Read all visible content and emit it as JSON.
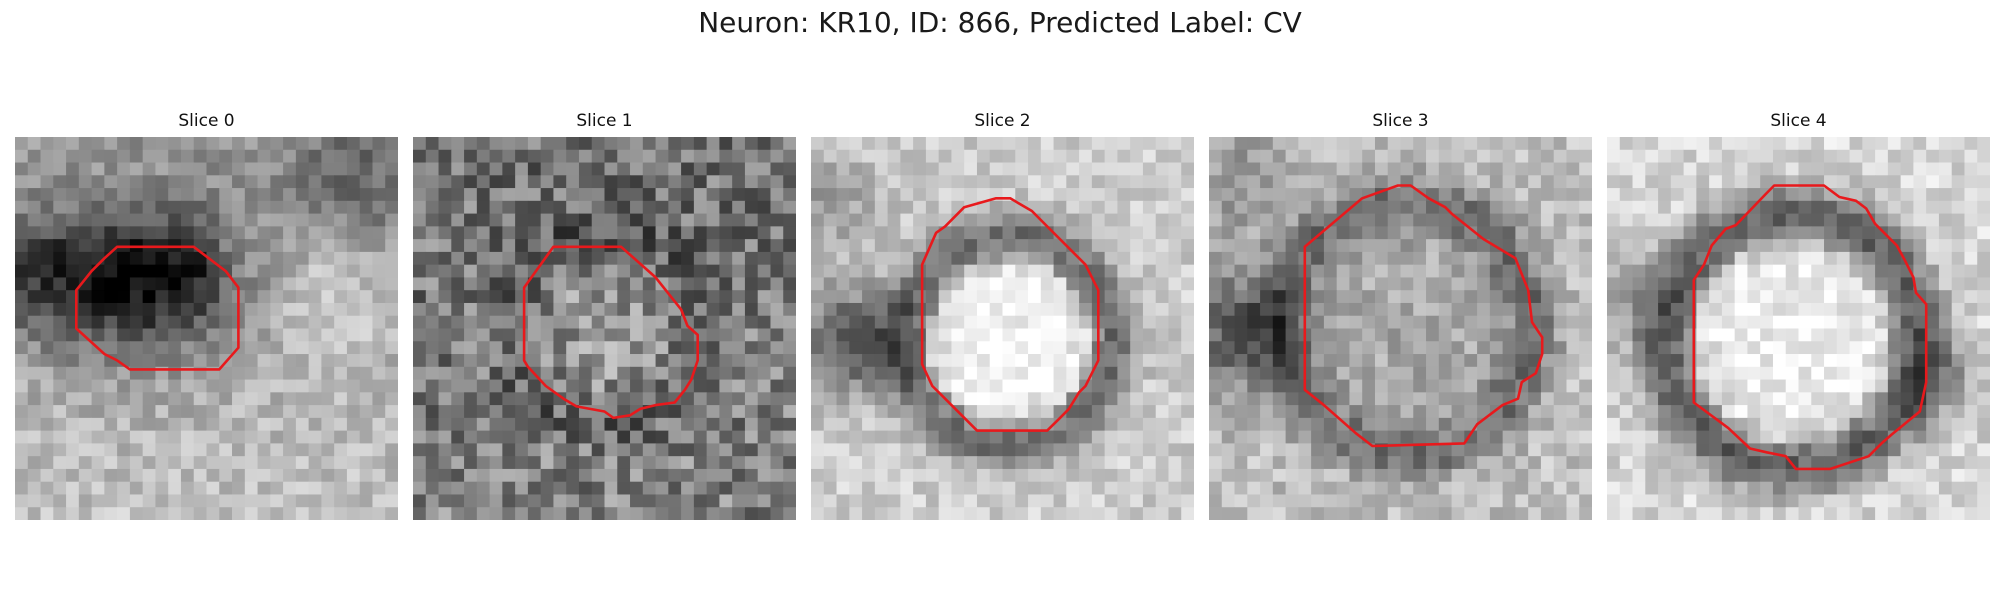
{
  "figure": {
    "title": "Neuron: KR10, ID: 866, Predicted Label: CV"
  },
  "panels": [
    {
      "title": "Slice 0",
      "appearance": "dark irregular blob at left-center, lighter textured background",
      "contour_color": "#e8191c"
    },
    {
      "title": "Slice 1",
      "appearance": "grainy darker field with round grey body in center",
      "contour_color": "#e8191c"
    },
    {
      "title": "Slice 2",
      "appearance": "bright round vesicle interior with dark ring and dark patch on left",
      "contour_color": "#e8191c"
    },
    {
      "title": "Slice 3",
      "appearance": "large round body with medium grey interior and dark ring",
      "contour_color": "#e8191c"
    },
    {
      "title": "Slice 4",
      "appearance": "bright round interior with thick dark ring on light background",
      "contour_color": "#e8191c"
    }
  ]
}
